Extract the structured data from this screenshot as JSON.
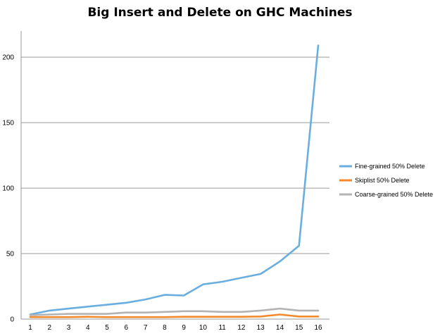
{
  "chart_data": {
    "type": "line",
    "title": "Big Insert and Delete on GHC Machines",
    "xlabel": "",
    "ylabel": "",
    "categories": [
      "1",
      "2",
      "3",
      "4",
      "5",
      "6",
      "7",
      "8",
      "9",
      "10",
      "11",
      "12",
      "13",
      "14",
      "15",
      "16"
    ],
    "ylim": [
      0,
      220
    ],
    "yticks": [
      0,
      50,
      100,
      150,
      200
    ],
    "grid": true,
    "legend_position": "right",
    "series": [
      {
        "name": "Fine-grained 50% Delete",
        "color": "#6aaee0",
        "values": [
          3.5,
          6.5,
          8,
          9.5,
          11,
          12.5,
          15,
          18.5,
          18,
          26.5,
          28.5,
          31.5,
          34.5,
          44,
          56,
          209
        ]
      },
      {
        "name": "Skiplist 50% Delete",
        "color": "#f28a2e",
        "values": [
          1.5,
          1.5,
          1.5,
          1.8,
          1.5,
          1.5,
          1.5,
          1.5,
          1.8,
          1.8,
          1.8,
          1.8,
          2,
          3.5,
          2,
          2
        ]
      },
      {
        "name": "Coarse-grained 50% Delete",
        "color": "#b3b3b3",
        "values": [
          3,
          3.5,
          4,
          4,
          4,
          5,
          5,
          5.5,
          6,
          6,
          5.5,
          5.5,
          6.5,
          8,
          6.5,
          6.5
        ]
      }
    ]
  }
}
